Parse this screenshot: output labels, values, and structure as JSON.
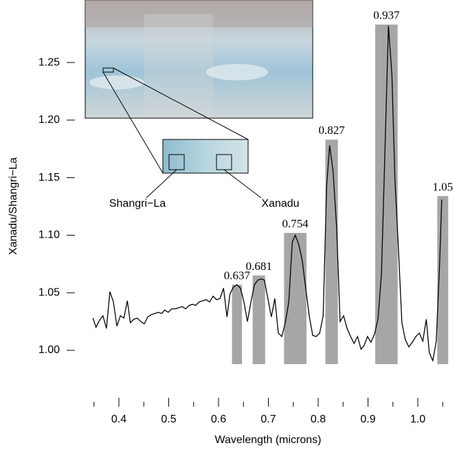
{
  "chart_data": {
    "type": "line",
    "ylabel": "Xanadu/Shangri−La",
    "xlabel": "Wavelength (microns)",
    "color": "#000000",
    "band_color": "#a6a6a6",
    "xlim": [
      0.34,
      1.06
    ],
    "ylim": [
      0.98,
      1.29
    ],
    "xticks": [
      0.4,
      0.5,
      0.6,
      0.7,
      0.8,
      0.9,
      {
        "value": 1.0,
        "label": "1.0"
      }
    ],
    "xminorticks": [
      0.35,
      0.45,
      0.55,
      0.65,
      0.75,
      0.85,
      0.95,
      1.05
    ],
    "yticks": [
      {
        "value": 1.0,
        "label": "1.00"
      },
      1.05,
      {
        "value": 1.1,
        "label": "1.10"
      },
      1.15,
      {
        "value": 1.2,
        "label": "1.20"
      },
      1.25
    ],
    "annotations": [
      "Shangri−La",
      "Xanadu"
    ],
    "band_bottom": 0.988,
    "bands": [
      {
        "center": 0.637,
        "width": 0.02,
        "top": 1.057
      },
      {
        "center": 0.681,
        "width": 0.025,
        "top": 1.065
      },
      {
        "center": 0.754,
        "width": 0.045,
        "top": 1.102
      },
      {
        "center": 0.827,
        "width": 0.025,
        "top": 1.183
      },
      {
        "center": 0.937,
        "width": 0.045,
        "top": 1.283
      },
      {
        "center": 1.05,
        "width": 0.022,
        "top": 1.134
      }
    ],
    "x": [
      0.348,
      0.354,
      0.361,
      0.368,
      0.375,
      0.382,
      0.389,
      0.396,
      0.403,
      0.41,
      0.417,
      0.423,
      0.43,
      0.437,
      0.444,
      0.451,
      0.458,
      0.465,
      0.472,
      0.479,
      0.486,
      0.492,
      0.499,
      0.506,
      0.513,
      0.52,
      0.527,
      0.534,
      0.541,
      0.548,
      0.554,
      0.561,
      0.568,
      0.575,
      0.582,
      0.589,
      0.596,
      0.603,
      0.61,
      0.617,
      0.623,
      0.63,
      0.637,
      0.644,
      0.651,
      0.658,
      0.665,
      0.672,
      0.679,
      0.686,
      0.692,
      0.699,
      0.706,
      0.713,
      0.72,
      0.727,
      0.734,
      0.741,
      0.748,
      0.754,
      0.761,
      0.768,
      0.775,
      0.782,
      0.789,
      0.796,
      0.803,
      0.81,
      0.817,
      0.823,
      0.83,
      0.837,
      0.844,
      0.851,
      0.858,
      0.865,
      0.872,
      0.879,
      0.886,
      0.892,
      0.899,
      0.906,
      0.913,
      0.92,
      0.927,
      0.934,
      0.941,
      0.948,
      0.954,
      0.961,
      0.968,
      0.975,
      0.982,
      0.989,
      0.996,
      1.003,
      1.01,
      1.017,
      1.023,
      1.03,
      1.037,
      1.044,
      1.048
    ],
    "values": [
      1.028,
      1.02,
      1.026,
      1.03,
      1.019,
      1.051,
      1.042,
      1.021,
      1.03,
      1.028,
      1.043,
      1.024,
      1.027,
      1.028,
      1.025,
      1.023,
      1.029,
      1.031,
      1.032,
      1.033,
      1.032,
      1.035,
      1.033,
      1.036,
      1.036,
      1.037,
      1.038,
      1.036,
      1.039,
      1.04,
      1.039,
      1.042,
      1.043,
      1.044,
      1.042,
      1.047,
      1.044,
      1.045,
      1.054,
      1.029,
      1.049,
      1.055,
      1.057,
      1.054,
      1.042,
      1.025,
      1.042,
      1.057,
      1.061,
      1.062,
      1.061,
      1.045,
      1.029,
      1.045,
      1.015,
      1.012,
      1.024,
      1.042,
      1.094,
      1.1,
      1.092,
      1.078,
      1.054,
      1.03,
      1.013,
      1.012,
      1.015,
      1.03,
      1.143,
      1.178,
      1.155,
      1.107,
      1.025,
      1.03,
      1.019,
      1.012,
      1.006,
      1.012,
      1.001,
      1.004,
      1.012,
      1.007,
      1.014,
      1.027,
      1.066,
      1.173,
      1.282,
      1.239,
      1.149,
      1.089,
      1.024,
      1.009,
      1.003,
      1.007,
      1.012,
      1.015,
      1.008,
      1.027,
      0.998,
      0.991,
      1.008,
      1.078,
      1.131
    ]
  }
}
